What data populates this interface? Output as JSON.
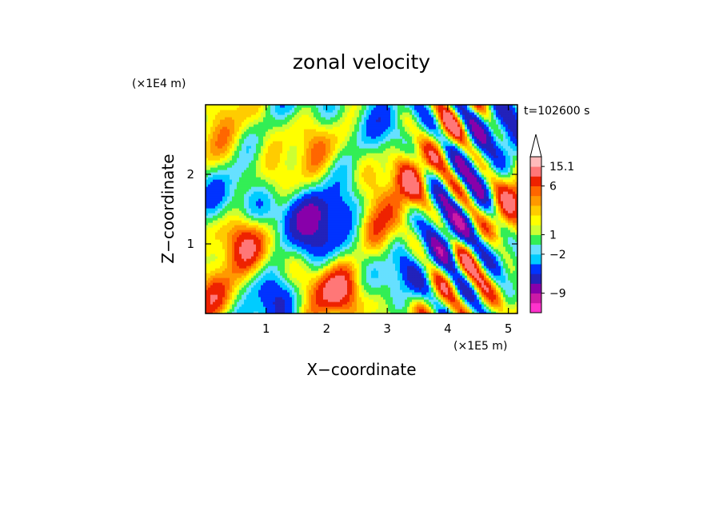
{
  "chart_data": {
    "type": "heatmap",
    "title": "zonal velocity",
    "xlabel": "X−coordinate",
    "ylabel": "Z−coordinate",
    "x_unit": "(×1E5 m)",
    "y_unit": "(×1E4 m)",
    "time_label": "t=102600 s",
    "xlim": [
      0,
      5.15
    ],
    "ylim": [
      0,
      3.0
    ],
    "x_ticks": [
      1,
      2,
      3,
      4,
      5
    ],
    "y_ticks": [
      1,
      2
    ],
    "colorbar": {
      "labels": [
        {
          "value": 15.1,
          "text": "15.1"
        },
        {
          "value": 6,
          "text": "6"
        },
        {
          "value": 1,
          "text": "1"
        },
        {
          "value": -2,
          "text": "−2"
        },
        {
          "value": -9,
          "text": "−9"
        }
      ],
      "colors": [
        "#ff33cc",
        "#cc1aa6",
        "#8800aa",
        "#2222bb",
        "#0033ff",
        "#00ccff",
        "#66e0ff",
        "#33ee55",
        "#ccff33",
        "#ffff00",
        "#ffcc00",
        "#ff9900",
        "#ff6600",
        "#ee2200",
        "#ff7777",
        "#ffbbbb"
      ]
    }
  }
}
